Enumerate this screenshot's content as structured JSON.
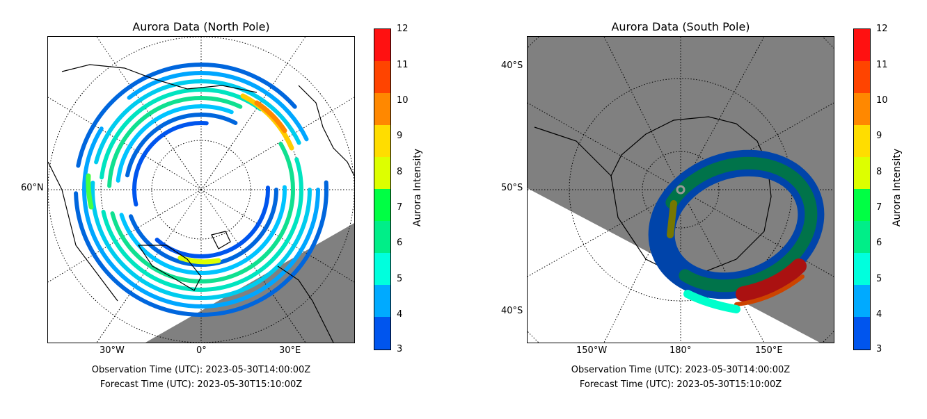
{
  "colorscale": {
    "label": "Aurora Intensity",
    "ticks": [
      "3",
      "4",
      "5",
      "6",
      "7",
      "8",
      "9",
      "10",
      "11",
      "12"
    ],
    "colors": [
      "#0055ee",
      "#00aaff",
      "#00ffdd",
      "#00ee88",
      "#00ff44",
      "#ddff00",
      "#ffdd00",
      "#ff8800",
      "#ff4400",
      "#ff1111"
    ]
  },
  "north": {
    "title": "Aurora Data (North Pole)",
    "lat_label": "60°N",
    "lon_labels": [
      "30°W",
      "0°",
      "30°E"
    ],
    "observation": "Observation Time (UTC): 2023-05-30T14:00:00Z",
    "forecast": "Forecast Time (UTC): 2023-05-30T15:10:00Z"
  },
  "south": {
    "title": "Aurora Data (South Pole)",
    "lat_labels": [
      "40°S",
      "50°S",
      "40°S"
    ],
    "lon_labels": [
      "150°W",
      "180°",
      "150°E"
    ],
    "observation": "Observation Time (UTC): 2023-05-30T14:00:00Z",
    "forecast": "Forecast Time (UTC): 2023-05-30T15:10:00Z"
  },
  "map_colors": {
    "night_shade": "#808080",
    "coastline": "#000000",
    "graticule": "#000000"
  }
}
